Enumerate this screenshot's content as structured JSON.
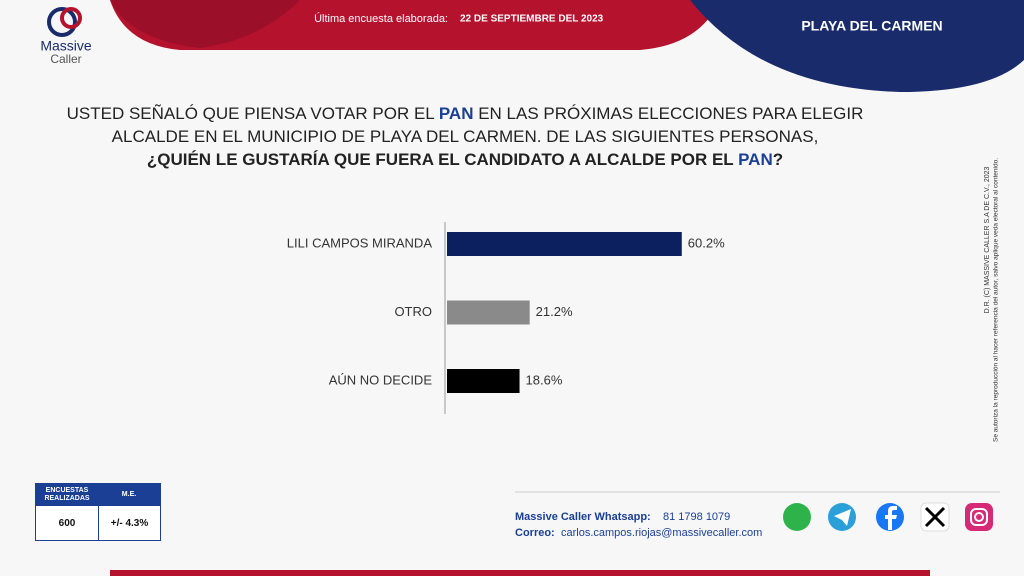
{
  "header": {
    "logo_top": "Massive",
    "logo_bottom": "Caller",
    "survey_label": "Última encuesta elaborada:",
    "survey_date": "22 DE SEPTIEMBRE DEL 2023",
    "location": "PLAYA DEL CARMEN"
  },
  "question": {
    "lines": [
      [
        "USTED SEÑALÓ QUE PIENSA VOTAR POR EL ",
        "PAN",
        " EN LAS PRÓXIMAS ELECCIONES PARA ELEGIR"
      ],
      [
        "ALCALDE EN EL MUNICIPIO DE PLAYA DEL CARMEN. DE LAS SIGUIENTES PERSONAS,"
      ],
      [
        "¿QUIÉN LE GUSTARÍA QUE FUERA EL CANDIDATO A ALCALDE POR EL ",
        "PAN",
        "?"
      ]
    ]
  },
  "chart_data": {
    "type": "bar",
    "orientation": "horizontal",
    "categories": [
      "LILI CAMPOS MIRANDA",
      "OTRO",
      "AÚN NO DECIDE"
    ],
    "values": [
      60.2,
      21.2,
      18.6
    ],
    "value_labels": [
      "60.2%",
      "21.2%",
      "18.6%"
    ],
    "colors": [
      "#0c1f5e",
      "#8a8a8a",
      "#000000"
    ]
  },
  "side_note": {
    "copyright": "D.R. (C) MASSIVE CALLER S.A DE C.V., 2023",
    "notice": "Se autoriza la reproducción al hacer referencia del autor, salvo aplique veda electoral al contenido."
  },
  "footer": {
    "table": {
      "headers": [
        "ENCUESTAS REALIZADAS",
        "M.E."
      ],
      "values": [
        "600",
        "+/- 4.3%"
      ]
    },
    "whatsapp_label": "Massive Caller Whatsapp:",
    "whatsapp_number": "81 1798 1079",
    "email_label": "Correo:",
    "email": "carlos.campos.riojas@massivecaller.com"
  }
}
